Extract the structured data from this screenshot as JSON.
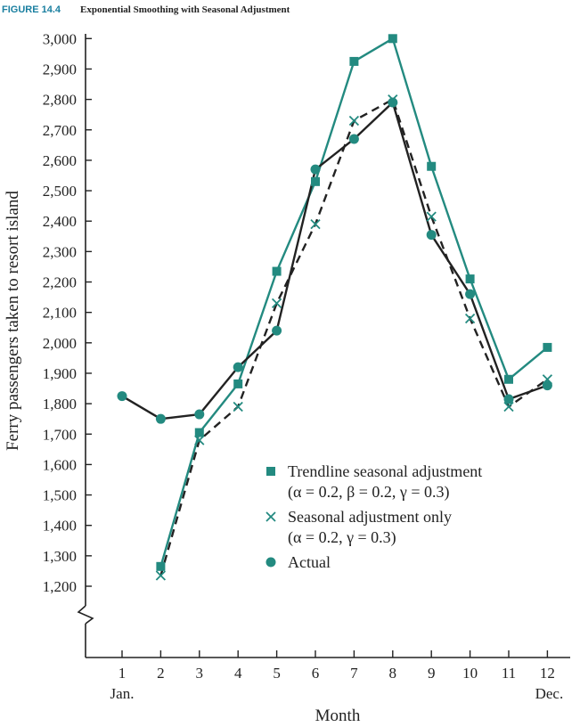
{
  "figure": {
    "label": "FIGURE 14.4",
    "title": "Exponential Smoothing with Seasonal Adjustment"
  },
  "colors": {
    "teal": "#238a80",
    "dark": "#222222",
    "figure_label": "#1a7fa0"
  },
  "chart_data": {
    "type": "line",
    "title": "Exponential Smoothing with Seasonal Adjustment",
    "xlabel": "Month",
    "ylabel": "Ferry passengers taken to resort island",
    "x": [
      1,
      2,
      3,
      4,
      5,
      6,
      7,
      8,
      9,
      10,
      11,
      12
    ],
    "x_tick_labels": [
      "1",
      "2",
      "3",
      "4",
      "5",
      "6",
      "7",
      "8",
      "9",
      "10",
      "11",
      "12"
    ],
    "x_sub_labels": {
      "first": "Jan.",
      "last": "Dec."
    },
    "y_ticks": [
      1200,
      1300,
      1400,
      1500,
      1600,
      1700,
      1800,
      1900,
      2000,
      2100,
      2200,
      2300,
      2400,
      2500,
      2600,
      2700,
      2800,
      2900,
      3000
    ],
    "y_tick_labels": [
      "1,200",
      "1,300",
      "1,400",
      "1,500",
      "1,600",
      "1,700",
      "1,800",
      "1,900",
      "2,000",
      "2,100",
      "2,200",
      "2,300",
      "2,400",
      "2,500",
      "2,600",
      "2,700",
      "2,800",
      "2,900",
      "3,000"
    ],
    "ylim": [
      1200,
      3000
    ],
    "axis_break": true,
    "grid": false,
    "legend_position": "center-right",
    "series": [
      {
        "key": "trend",
        "name": "Trendline seasonal adjustment",
        "params": "(α = 0.2, β = 0.2, γ = 0.3)",
        "marker": "square",
        "line": "solid",
        "color": "#238a80",
        "x": [
          2,
          3,
          4,
          5,
          6,
          7,
          8,
          9,
          10,
          11,
          12
        ],
        "values": [
          1265,
          1705,
          1865,
          2235,
          2530,
          2925,
          3000,
          2580,
          2210,
          1880,
          1985
        ]
      },
      {
        "key": "seasonal",
        "name": "Seasonal adjustment only",
        "params": "(α = 0.2, γ = 0.3)",
        "marker": "x",
        "line": "dashed",
        "color": "#222222",
        "x": [
          2,
          3,
          4,
          5,
          6,
          7,
          8,
          9,
          10,
          11,
          12
        ],
        "values": [
          1235,
          1680,
          1790,
          2130,
          2390,
          2730,
          2800,
          2415,
          2080,
          1790,
          1880
        ]
      },
      {
        "key": "actual",
        "name": "Actual",
        "params": "",
        "marker": "circle",
        "line": "solid",
        "color": "#222222",
        "x": [
          1,
          2,
          3,
          4,
          5,
          6,
          7,
          8,
          9,
          10,
          11,
          12
        ],
        "values": [
          1825,
          1750,
          1765,
          1920,
          2040,
          2570,
          2670,
          2790,
          2355,
          2160,
          1815,
          1860
        ]
      }
    ]
  }
}
